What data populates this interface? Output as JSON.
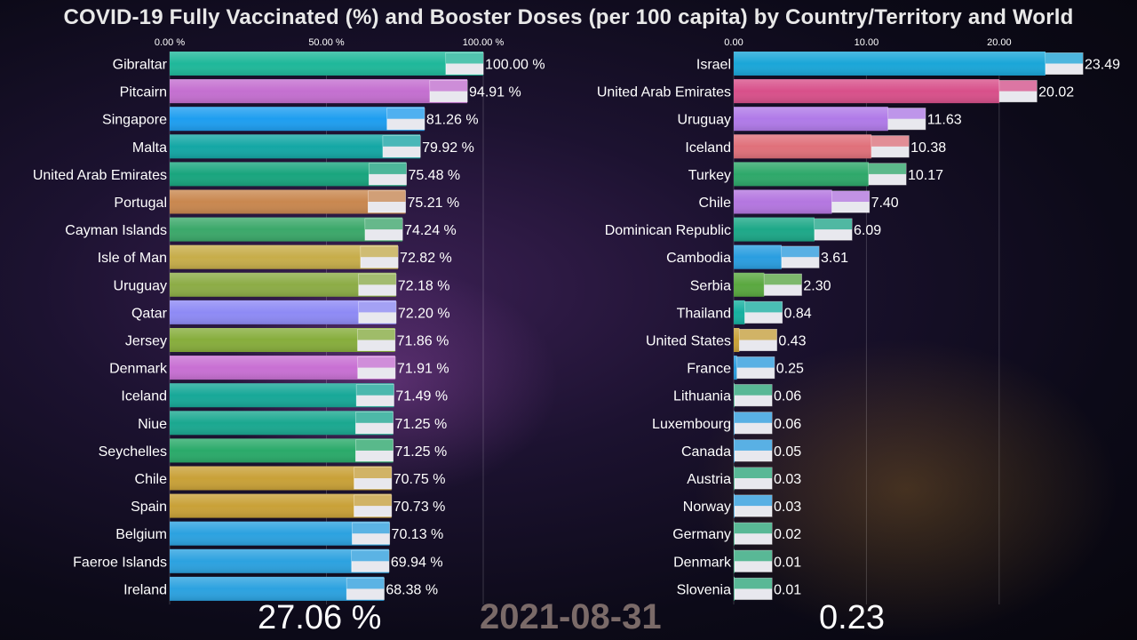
{
  "title": "COVID-19 Fully Vaccinated (%) and Booster Doses (per 100 capita) by Country/Territory and World",
  "date": "2021-08-31",
  "left_footer": "27.06 %",
  "right_footer": "0.23",
  "chart_data": [
    {
      "type": "bar",
      "orientation": "horizontal",
      "xlim": [
        0,
        100
      ],
      "tick_labels": [
        "0.00 %",
        "50.00 %",
        "100.00 %"
      ],
      "tick_values": [
        0,
        50,
        100
      ],
      "unit_suffix": " %",
      "categories": [
        "Gibraltar",
        "Pitcairn",
        "Singapore",
        "Malta",
        "United Arab Emirates",
        "Portugal",
        "Cayman Islands",
        "Isle of Man",
        "Uruguay",
        "Qatar",
        "Jersey",
        "Denmark",
        "Iceland",
        "Niue",
        "Seychelles",
        "Chile",
        "Spain",
        "Belgium",
        "Faeroe Islands",
        "Ireland"
      ],
      "values": [
        100.0,
        94.91,
        81.26,
        79.92,
        75.48,
        75.21,
        74.24,
        72.82,
        72.18,
        72.2,
        71.86,
        71.91,
        71.49,
        71.25,
        71.25,
        70.75,
        70.73,
        70.13,
        69.94,
        68.38
      ],
      "value_labels": [
        "100.00 %",
        "94.91 %",
        "81.26 %",
        "79.92 %",
        "75.48 %",
        "75.21 %",
        "74.24 %",
        "72.82 %",
        "72.18 %",
        "72.20 %",
        "71.86 %",
        "71.91 %",
        "71.49 %",
        "71.25 %",
        "71.25 %",
        "70.75 %",
        "70.73 %",
        "70.13 %",
        "69.94 %",
        "68.38 %"
      ],
      "colors": [
        "#1fb89a",
        "#c46fd0",
        "#1e9ef0",
        "#14a7a5",
        "#19a57e",
        "#c9874f",
        "#3ba86a",
        "#c7ad4a",
        "#8cac46",
        "#8e8af5",
        "#87ad3c",
        "#c870d3",
        "#17a898",
        "#1aa890",
        "#2aaa6a",
        "#c9a138",
        "#c9a138",
        "#2ca2e0",
        "#2ca2e0",
        "#2ca2e0"
      ]
    },
    {
      "type": "bar",
      "orientation": "horizontal",
      "xlim": [
        0,
        23.49
      ],
      "tick_labels": [
        "0.00",
        "10.00",
        "20.00"
      ],
      "tick_values": [
        0,
        10,
        20
      ],
      "categories": [
        "Israel",
        "United Arab Emirates",
        "Uruguay",
        "Iceland",
        "Turkey",
        "Chile",
        "Dominican Republic",
        "Cambodia",
        "Serbia",
        "Thailand",
        "United States",
        "France",
        "Lithuania",
        "Luxembourg",
        "Canada",
        "Austria",
        "Norway",
        "Germany",
        "Denmark",
        "Slovenia"
      ],
      "values": [
        23.49,
        20.02,
        11.63,
        10.38,
        10.17,
        7.4,
        6.09,
        3.61,
        2.3,
        0.84,
        0.43,
        0.25,
        0.06,
        0.06,
        0.05,
        0.03,
        0.03,
        0.02,
        0.01,
        0.01
      ],
      "value_labels": [
        "23.49",
        "20.02",
        "11.63",
        "10.38",
        "10.17",
        "7.40",
        "6.09",
        "3.61",
        "2.30",
        "0.84",
        "0.43",
        "0.25",
        "0.06",
        "0.06",
        "0.05",
        "0.03",
        "0.03",
        "0.02",
        "0.01",
        "0.01"
      ],
      "colors": [
        "#1aa6d8",
        "#d8508a",
        "#b07ae8",
        "#e0707a",
        "#2ea86a",
        "#b476e0",
        "#1da888",
        "#2a9ee0",
        "#5aa840",
        "#16b0a0",
        "#c9a138",
        "#2a9ee0",
        "#2aa878",
        "#2a9ee0",
        "#2a9ee0",
        "#2aa878",
        "#2a9ee0",
        "#2aa878",
        "#2aa878",
        "#2aa878"
      ]
    }
  ]
}
